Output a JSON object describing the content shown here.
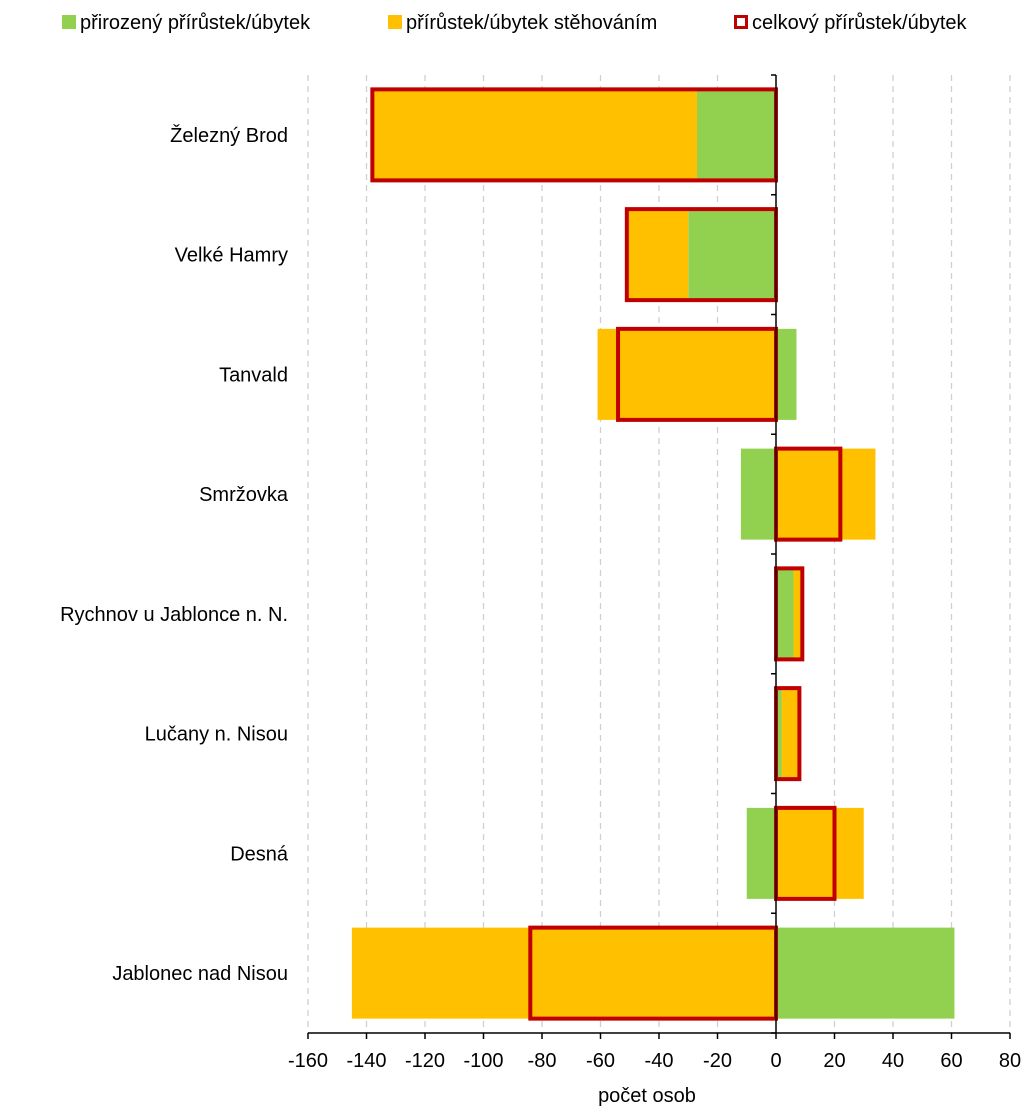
{
  "chart_data": {
    "type": "bar",
    "orientation": "horizontal",
    "categories": [
      "Železný Brod",
      "Velké Hamry",
      "Tanvald",
      "Smržovka",
      "Rychnov u Jablonce n. N.",
      "Lučany n. Nisou",
      "Desná",
      "Jablonec nad Nisou"
    ],
    "series": [
      {
        "name": "přirozený přírůstek/úbytek",
        "color": "#92d050",
        "style": "filled",
        "values": [
          -27,
          -30,
          7,
          -12,
          6,
          2,
          -10,
          61
        ]
      },
      {
        "name": "přírůstek/úbytek stěhováním",
        "color": "#ffc000",
        "style": "filled",
        "values": [
          -111,
          -21,
          -61,
          34,
          3,
          6,
          30,
          -145
        ]
      },
      {
        "name": "celkový přírůstek/úbytek",
        "color": "#c00000",
        "style": "outline",
        "values": [
          -138,
          -51,
          -54,
          22,
          9,
          8,
          20,
          -84
        ]
      }
    ],
    "x_ticks": [
      -160,
      -140,
      -120,
      -100,
      -80,
      -60,
      -40,
      -20,
      0,
      20,
      40,
      60,
      80
    ],
    "xlim": [
      -160,
      80
    ],
    "xlabel": "počet osob",
    "ylabel": "",
    "title": "",
    "grid": "vertical dashed",
    "legend_position": "top"
  }
}
